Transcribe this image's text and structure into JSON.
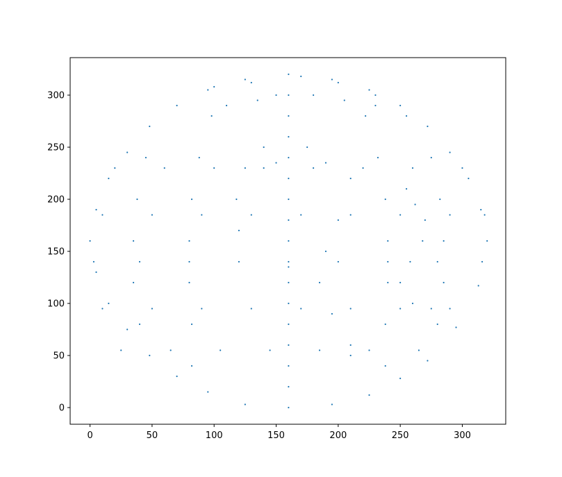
{
  "chart_data": {
    "type": "scatter",
    "title": "",
    "xlabel": "",
    "ylabel": "",
    "xlim": [
      -16,
      335
    ],
    "ylim": [
      -16,
      336
    ],
    "xticks": [
      0,
      50,
      100,
      150,
      200,
      250,
      300
    ],
    "yticks": [
      0,
      50,
      100,
      150,
      200,
      250,
      300
    ],
    "xtick_labels": [
      "0",
      "50",
      "100",
      "150",
      "200",
      "250",
      "300"
    ],
    "ytick_labels": [
      "0",
      "50",
      "100",
      "150",
      "200",
      "250",
      "300"
    ],
    "grid": false,
    "legend": "none",
    "marker_color": "#1f77b4",
    "marker_size": 1,
    "description_of_points": "dense scatter of dots tracing a globe wireframe (latitude lines, longitude lines and continent outlines) inside a circle centred near (160, 160) with radius 160",
    "series": [
      {
        "name": "",
        "points": [
          [
            160,
            0
          ],
          [
            160,
            20
          ],
          [
            160,
            40
          ],
          [
            160,
            60
          ],
          [
            160,
            80
          ],
          [
            160,
            100
          ],
          [
            160,
            120
          ],
          [
            160,
            140
          ],
          [
            160,
            160
          ],
          [
            160,
            180
          ],
          [
            160,
            200
          ],
          [
            160,
            220
          ],
          [
            160,
            240
          ],
          [
            160,
            260
          ],
          [
            160,
            280
          ],
          [
            160,
            300
          ],
          [
            160,
            320
          ],
          [
            0,
            160
          ],
          [
            5,
            190
          ],
          [
            15,
            220
          ],
          [
            30,
            245
          ],
          [
            48,
            270
          ],
          [
            70,
            290
          ],
          [
            95,
            305
          ],
          [
            125,
            315
          ],
          [
            195,
            315
          ],
          [
            225,
            305
          ],
          [
            250,
            290
          ],
          [
            272,
            270
          ],
          [
            290,
            245
          ],
          [
            305,
            220
          ],
          [
            315,
            190
          ],
          [
            320,
            160
          ],
          [
            5,
            130
          ],
          [
            15,
            100
          ],
          [
            30,
            75
          ],
          [
            48,
            50
          ],
          [
            70,
            30
          ],
          [
            95,
            15
          ],
          [
            125,
            3
          ],
          [
            195,
            3
          ],
          [
            225,
            12
          ],
          [
            250,
            28
          ],
          [
            272,
            45
          ],
          [
            295,
            77
          ],
          [
            313,
            117
          ],
          [
            20,
            230
          ],
          [
            60,
            230
          ],
          [
            100,
            230
          ],
          [
            140,
            230
          ],
          [
            180,
            230
          ],
          [
            220,
            230
          ],
          [
            260,
            230
          ],
          [
            300,
            230
          ],
          [
            10,
            185
          ],
          [
            50,
            185
          ],
          [
            90,
            185
          ],
          [
            130,
            185
          ],
          [
            170,
            185
          ],
          [
            210,
            185
          ],
          [
            250,
            185
          ],
          [
            290,
            185
          ],
          [
            318,
            185
          ],
          [
            3,
            140
          ],
          [
            40,
            140
          ],
          [
            80,
            140
          ],
          [
            120,
            140
          ],
          [
            160,
            135
          ],
          [
            200,
            140
          ],
          [
            240,
            140
          ],
          [
            280,
            140
          ],
          [
            316,
            140
          ],
          [
            10,
            95
          ],
          [
            50,
            95
          ],
          [
            90,
            95
          ],
          [
            130,
            95
          ],
          [
            170,
            95
          ],
          [
            210,
            95
          ],
          [
            250,
            95
          ],
          [
            290,
            95
          ],
          [
            25,
            55
          ],
          [
            65,
            55
          ],
          [
            105,
            55
          ],
          [
            145,
            55
          ],
          [
            185,
            55
          ],
          [
            225,
            55
          ],
          [
            265,
            55
          ],
          [
            82,
            40
          ],
          [
            82,
            80
          ],
          [
            80,
            120
          ],
          [
            80,
            160
          ],
          [
            82,
            200
          ],
          [
            88,
            240
          ],
          [
            98,
            280
          ],
          [
            238,
            40
          ],
          [
            238,
            80
          ],
          [
            240,
            120
          ],
          [
            240,
            160
          ],
          [
            238,
            200
          ],
          [
            232,
            240
          ],
          [
            222,
            280
          ],
          [
            40,
            80
          ],
          [
            35,
            120
          ],
          [
            35,
            160
          ],
          [
            38,
            200
          ],
          [
            45,
            240
          ],
          [
            280,
            80
          ],
          [
            285,
            120
          ],
          [
            285,
            160
          ],
          [
            282,
            200
          ],
          [
            275,
            240
          ],
          [
            120,
            170
          ],
          [
            118,
            200
          ],
          [
            125,
            230
          ],
          [
            140,
            250
          ],
          [
            150,
            235
          ],
          [
            175,
            250
          ],
          [
            190,
            235
          ],
          [
            210,
            220
          ],
          [
            200,
            180
          ],
          [
            190,
            150
          ],
          [
            185,
            120
          ],
          [
            195,
            90
          ],
          [
            210,
            60
          ],
          [
            210,
            50
          ],
          [
            255,
            210
          ],
          [
            262,
            195
          ],
          [
            270,
            180
          ],
          [
            268,
            160
          ],
          [
            258,
            140
          ],
          [
            250,
            120
          ],
          [
            260,
            100
          ],
          [
            275,
            95
          ],
          [
            110,
            290
          ],
          [
            135,
            295
          ],
          [
            150,
            300
          ],
          [
            180,
            300
          ],
          [
            205,
            295
          ],
          [
            230,
            290
          ],
          [
            255,
            280
          ],
          [
            100,
            308
          ],
          [
            130,
            312
          ],
          [
            170,
            318
          ],
          [
            200,
            312
          ],
          [
            230,
            300
          ]
        ]
      }
    ]
  }
}
